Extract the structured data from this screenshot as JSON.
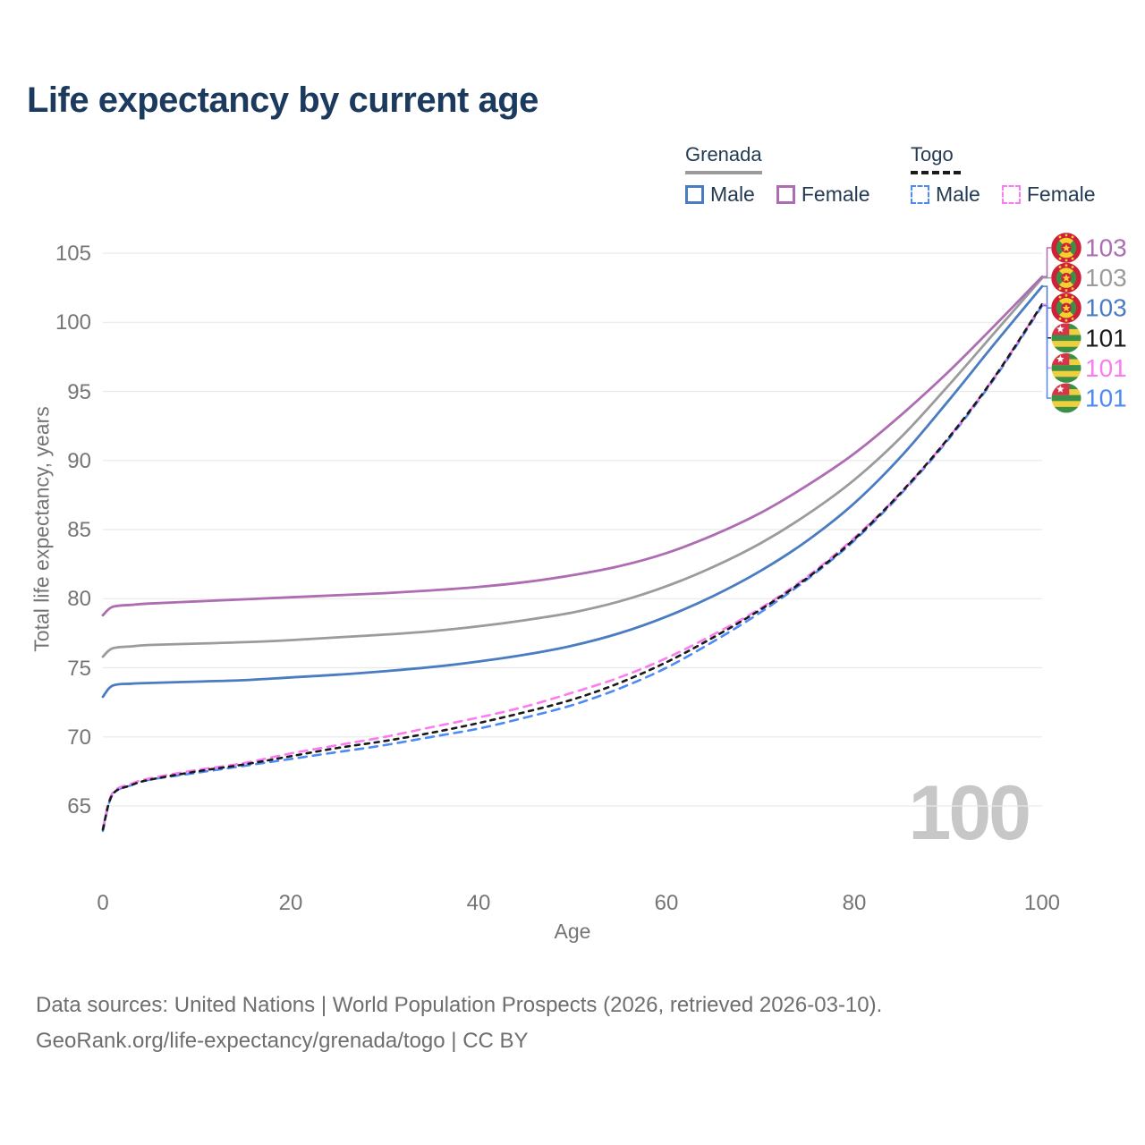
{
  "title": "Life expectancy by current age",
  "colors": {
    "title_text": "#1c3a5e",
    "legend_text": "#243b53",
    "axis_text": "#757575",
    "grid": "#e9e9e9",
    "watermark": "#c7c7c7",
    "footer_text": "#6e6e6e"
  },
  "legend": {
    "groups": [
      {
        "label": "Grenada",
        "line_style": "solid",
        "swatch_color": "#9b9b9b",
        "items": [
          {
            "label": "Male",
            "color": "#4a7cc2"
          },
          {
            "label": "Female",
            "color": "#ae6cb2"
          }
        ]
      },
      {
        "label": "Togo",
        "line_style": "dashed",
        "swatch_color": "#1a1a1a",
        "items": [
          {
            "label": "Male",
            "color": "#4e8af4"
          },
          {
            "label": "Female",
            "color": "#fb7bf0"
          }
        ]
      }
    ]
  },
  "watermark": "100",
  "footer": {
    "line1": "Data sources: United Nations | World Population Prospects (2026, retrieved 2026-03-10).",
    "line2": "GeoRank.org/life-expectancy/grenada/togo | CC BY"
  },
  "chart_data": {
    "type": "line",
    "title": "Life expectancy by current age",
    "xlabel": "Age",
    "ylabel": "Total life expectancy, years",
    "xlim": [
      0,
      100
    ],
    "ylim": [
      62,
      106
    ],
    "x_ticks": [
      0,
      20,
      40,
      60,
      80,
      100
    ],
    "y_ticks": [
      65,
      70,
      75,
      80,
      85,
      90,
      95,
      100,
      105
    ],
    "grid": "horizontal-only",
    "legend_position": "top-right",
    "ages": [
      0,
      1,
      3,
      5,
      10,
      15,
      20,
      25,
      30,
      35,
      40,
      45,
      50,
      55,
      60,
      65,
      70,
      75,
      80,
      85,
      90,
      95,
      100
    ],
    "series": [
      {
        "id": "grenada-female",
        "name": "Grenada Female",
        "country": "Grenada",
        "sex": "Female",
        "color": "#ae6cb2",
        "line_style": "solid",
        "dash": "",
        "end_label": "103",
        "flag_icon": "grenada-flag-icon",
        "draw_order": 1,
        "values": [
          78.8,
          79.4,
          79.55,
          79.65,
          79.8,
          79.95,
          80.1,
          80.25,
          80.4,
          80.6,
          80.85,
          81.2,
          81.7,
          82.35,
          83.3,
          84.6,
          86.2,
          88.2,
          90.5,
          93.3,
          96.4,
          99.8,
          103.3
        ]
      },
      {
        "id": "grenada-both",
        "name": "Grenada Both sexes",
        "country": "Grenada",
        "sex": "Both",
        "color": "#9b9b9b",
        "line_style": "solid",
        "dash": "",
        "end_label": "103",
        "flag_icon": "grenada-flag-icon",
        "draw_order": 0,
        "values": [
          75.8,
          76.4,
          76.55,
          76.65,
          76.75,
          76.85,
          77.0,
          77.2,
          77.4,
          77.65,
          78.0,
          78.45,
          79.0,
          79.8,
          80.9,
          82.3,
          84.0,
          86.1,
          88.6,
          91.7,
          95.4,
          99.3,
          103.2
        ]
      },
      {
        "id": "grenada-male",
        "name": "Grenada Male",
        "country": "Grenada",
        "sex": "Male",
        "color": "#4a7cc2",
        "line_style": "solid",
        "dash": "",
        "end_label": "103",
        "flag_icon": "grenada-flag-icon",
        "draw_order": 2,
        "values": [
          72.9,
          73.7,
          73.85,
          73.9,
          74.0,
          74.1,
          74.3,
          74.5,
          74.75,
          75.05,
          75.45,
          75.95,
          76.6,
          77.5,
          78.7,
          80.2,
          82.0,
          84.2,
          86.9,
          90.3,
          94.3,
          98.5,
          102.6
        ]
      },
      {
        "id": "togo-both",
        "name": "Togo Both sexes",
        "country": "Togo",
        "sex": "Both",
        "color": "#1a1a1a",
        "line_style": "dashed",
        "dash": "5 6",
        "end_label": "101",
        "flag_icon": "togo-flag-icon",
        "draw_order": 5,
        "values": [
          63.3,
          65.8,
          66.5,
          66.9,
          67.5,
          68.0,
          68.6,
          69.2,
          69.7,
          70.3,
          71.0,
          71.8,
          72.7,
          73.9,
          75.4,
          77.2,
          79.2,
          81.5,
          84.3,
          87.7,
          91.6,
          96.1,
          101.3
        ]
      },
      {
        "id": "togo-female",
        "name": "Togo Female",
        "country": "Togo",
        "sex": "Female",
        "color": "#fb7bf0",
        "line_style": "dashed",
        "dash": "9 7",
        "end_label": "101",
        "flag_icon": "togo-flag-icon",
        "draw_order": 4,
        "values": [
          63.4,
          65.9,
          66.6,
          67.0,
          67.6,
          68.1,
          68.8,
          69.4,
          70.0,
          70.7,
          71.4,
          72.2,
          73.2,
          74.3,
          75.7,
          77.4,
          79.3,
          81.6,
          84.4,
          87.7,
          91.6,
          96.1,
          101.3
        ]
      },
      {
        "id": "togo-male",
        "name": "Togo Male",
        "country": "Togo",
        "sex": "Male",
        "color": "#4e8af4",
        "line_style": "dashed",
        "dash": "9 7",
        "end_label": "101",
        "flag_icon": "togo-flag-icon",
        "draw_order": 3,
        "values": [
          63.2,
          65.8,
          66.5,
          66.9,
          67.4,
          67.9,
          68.4,
          68.9,
          69.4,
          70.0,
          70.6,
          71.4,
          72.3,
          73.5,
          75.0,
          76.9,
          79.0,
          81.4,
          84.2,
          87.6,
          91.5,
          96.0,
          101.2
        ]
      }
    ]
  }
}
